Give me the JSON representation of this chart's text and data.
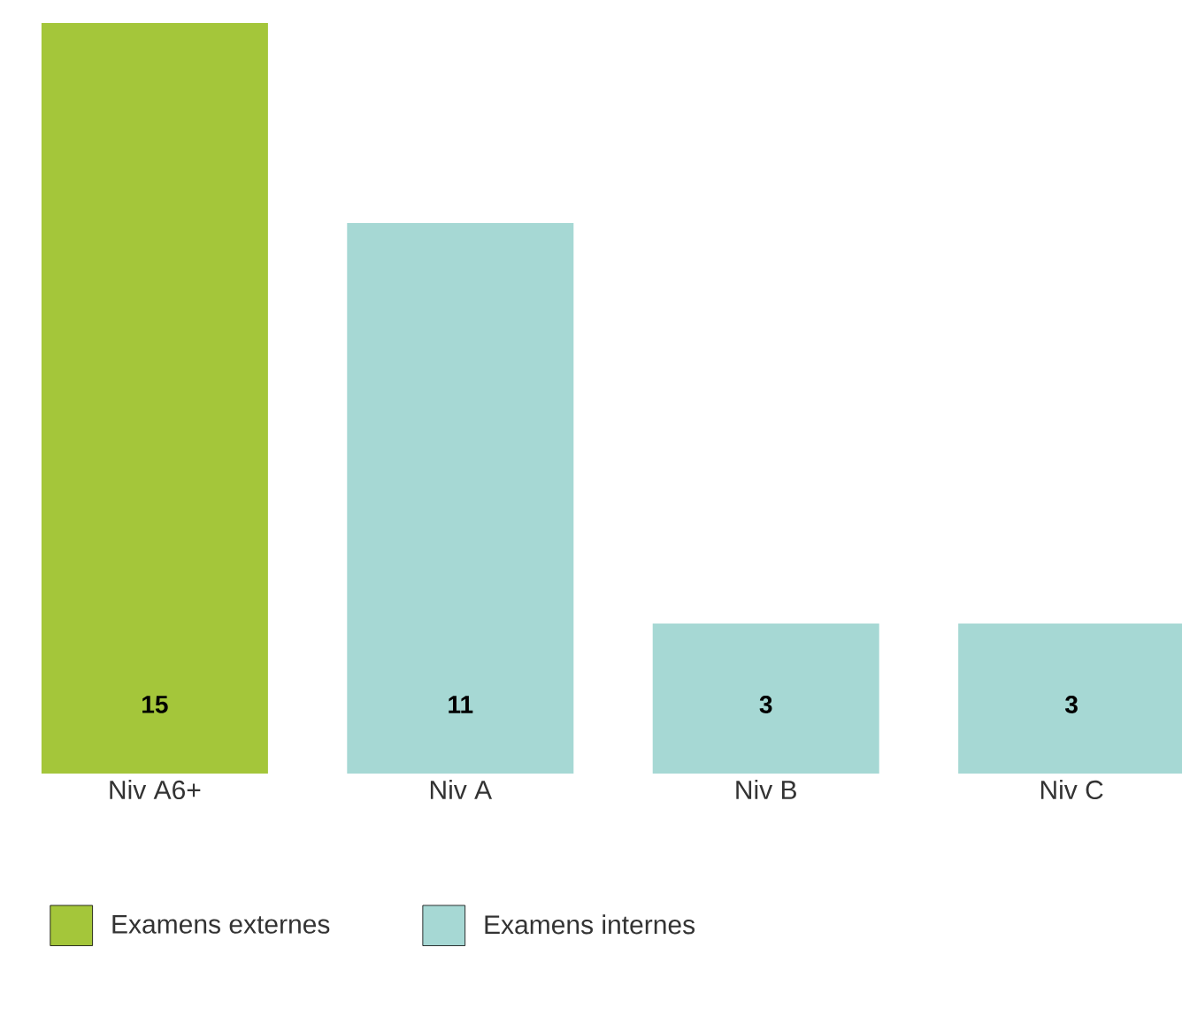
{
  "chart_data": {
    "type": "bar",
    "categories": [
      "Niv A6+",
      "Niv A",
      "Niv B",
      "Niv C"
    ],
    "series": [
      {
        "name": "Examens externes",
        "color": "#a4c63a",
        "values": [
          15,
          null,
          null,
          null
        ]
      },
      {
        "name": "Examens internes",
        "color": "#a6d8d4",
        "values": [
          null,
          11,
          3,
          3
        ]
      }
    ],
    "ylim": [
      0,
      15
    ],
    "data_labels": true,
    "legend": "bottom",
    "tick_labels": "x"
  }
}
